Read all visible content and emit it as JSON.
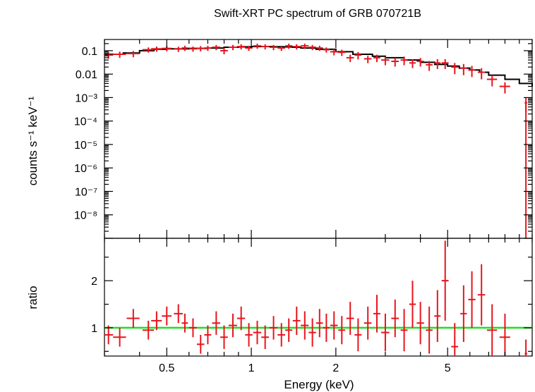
{
  "chart_data": [
    {
      "type": "scatter",
      "panel": "spectrum",
      "title": "Swift-XRT PC spectrum of GRB 070721B",
      "ylabel": "counts s⁻¹ keV⁻¹",
      "xlabel": "",
      "xscale": "log",
      "yscale": "log",
      "xlim": [
        0.3,
        10
      ],
      "ylim": [
        1e-09,
        0.3
      ],
      "y_tick_labels": [
        "0.1",
        "0.01",
        "10⁻³",
        "10⁻⁴",
        "10⁻⁵",
        "10⁻⁶",
        "10⁻⁷",
        "10⁻⁸"
      ],
      "y_tick_values": [
        0.1,
        0.01,
        0.001,
        0.0001,
        1e-05,
        1e-06,
        1e-07,
        1e-08
      ],
      "series": [
        {
          "color": "#e8141c",
          "x": [
            0.31,
            0.34,
            0.38,
            0.43,
            0.46,
            0.5,
            0.55,
            0.58,
            0.62,
            0.66,
            0.7,
            0.75,
            0.8,
            0.86,
            0.92,
            0.98,
            1.05,
            1.12,
            1.2,
            1.28,
            1.36,
            1.45,
            1.55,
            1.65,
            1.75,
            1.85,
            1.97,
            2.1,
            2.25,
            2.4,
            2.6,
            2.8,
            3.0,
            3.25,
            3.5,
            3.75,
            4.0,
            4.3,
            4.6,
            4.9,
            5.3,
            5.7,
            6.1,
            6.6,
            7.2,
            8.0,
            9.5
          ],
          "xerr": [
            0.012,
            0.018,
            0.02,
            0.02,
            0.02,
            0.02,
            0.02,
            0.015,
            0.02,
            0.02,
            0.02,
            0.025,
            0.025,
            0.03,
            0.03,
            0.03,
            0.035,
            0.035,
            0.04,
            0.04,
            0.04,
            0.045,
            0.05,
            0.05,
            0.05,
            0.05,
            0.06,
            0.06,
            0.07,
            0.07,
            0.08,
            0.08,
            0.1,
            0.1,
            0.1,
            0.1,
            0.12,
            0.12,
            0.12,
            0.14,
            0.15,
            0.15,
            0.18,
            0.2,
            0.3,
            0.35,
            0.1
          ],
          "y": [
            0.065,
            0.07,
            0.075,
            0.11,
            0.12,
            0.125,
            0.118,
            0.13,
            0.12,
            0.125,
            0.13,
            0.14,
            0.1,
            0.14,
            0.15,
            0.13,
            0.16,
            0.15,
            0.14,
            0.13,
            0.16,
            0.15,
            0.16,
            0.14,
            0.13,
            0.11,
            0.09,
            0.085,
            0.05,
            0.065,
            0.045,
            0.05,
            0.04,
            0.035,
            0.04,
            0.03,
            0.035,
            0.025,
            0.03,
            0.03,
            0.02,
            0.018,
            0.015,
            0.012,
            0.006,
            0.003,
            0.0006
          ],
          "yerr_frac": [
            0.3,
            0.3,
            0.3,
            0.25,
            0.25,
            0.25,
            0.25,
            0.25,
            0.25,
            0.25,
            0.25,
            0.25,
            0.3,
            0.25,
            0.25,
            0.25,
            0.25,
            0.25,
            0.25,
            0.25,
            0.25,
            0.25,
            0.25,
            0.25,
            0.25,
            0.25,
            0.3,
            0.3,
            0.35,
            0.35,
            0.35,
            0.35,
            0.4,
            0.4,
            0.4,
            0.4,
            0.4,
            0.45,
            0.45,
            0.45,
            0.5,
            0.5,
            0.5,
            0.5,
            0.5,
            0.5,
            0.6
          ]
        }
      ],
      "model": {
        "color": "#000000",
        "x": [
          0.3,
          0.35,
          0.4,
          0.45,
          0.5,
          0.6,
          0.7,
          0.8,
          0.9,
          1.0,
          1.1,
          1.2,
          1.3,
          1.4,
          1.5,
          1.7,
          2.0,
          2.3,
          2.7,
          3.0,
          3.5,
          4.0,
          4.5,
          5.0,
          5.5,
          6.0,
          6.5,
          7.0,
          8.0,
          9.0,
          10.0
        ],
        "y": [
          0.07,
          0.08,
          0.1,
          0.115,
          0.12,
          0.125,
          0.13,
          0.14,
          0.145,
          0.15,
          0.15,
          0.148,
          0.145,
          0.14,
          0.13,
          0.115,
          0.09,
          0.07,
          0.058,
          0.05,
          0.04,
          0.032,
          0.026,
          0.022,
          0.018,
          0.015,
          0.012,
          0.009,
          0.006,
          0.004,
          0.003
        ]
      }
    },
    {
      "type": "scatter",
      "panel": "ratio",
      "title": "",
      "ylabel": "ratio",
      "xlabel": "Energy (keV)",
      "xscale": "log",
      "xlim": [
        0.3,
        10
      ],
      "ylim": [
        0.4,
        2.9
      ],
      "x_tick_labels": [
        "0.5",
        "1",
        "2",
        "5"
      ],
      "x_tick_values": [
        0.5,
        1,
        2,
        5
      ],
      "y_tick_labels": [
        "1",
        "2"
      ],
      "y_tick_values": [
        1,
        2
      ],
      "reference_line": {
        "y": 1,
        "color": "#22dd22"
      },
      "series": [
        {
          "color": "#e8141c",
          "x": [
            0.31,
            0.34,
            0.38,
            0.43,
            0.46,
            0.5,
            0.55,
            0.58,
            0.62,
            0.66,
            0.7,
            0.75,
            0.8,
            0.86,
            0.92,
            0.98,
            1.05,
            1.12,
            1.2,
            1.28,
            1.36,
            1.45,
            1.55,
            1.65,
            1.75,
            1.85,
            1.97,
            2.1,
            2.25,
            2.4,
            2.6,
            2.8,
            3.0,
            3.25,
            3.5,
            3.75,
            4.0,
            4.3,
            4.6,
            4.9,
            5.3,
            5.7,
            6.1,
            6.6,
            7.2,
            8.0,
            9.5
          ],
          "xerr": [
            0.012,
            0.018,
            0.02,
            0.02,
            0.02,
            0.02,
            0.02,
            0.015,
            0.02,
            0.02,
            0.02,
            0.025,
            0.025,
            0.03,
            0.03,
            0.03,
            0.035,
            0.035,
            0.04,
            0.04,
            0.04,
            0.045,
            0.05,
            0.05,
            0.05,
            0.05,
            0.06,
            0.06,
            0.07,
            0.07,
            0.08,
            0.08,
            0.1,
            0.1,
            0.1,
            0.1,
            0.12,
            0.12,
            0.12,
            0.14,
            0.15,
            0.15,
            0.18,
            0.2,
            0.3,
            0.35,
            0.1
          ],
          "y": [
            0.85,
            0.8,
            1.2,
            0.95,
            1.15,
            1.25,
            1.3,
            1.1,
            1.0,
            0.65,
            0.85,
            1.1,
            0.8,
            1.05,
            1.2,
            0.85,
            0.9,
            0.8,
            1.0,
            0.85,
            0.95,
            1.15,
            1.05,
            0.9,
            1.1,
            1.0,
            1.05,
            0.95,
            1.2,
            0.85,
            1.1,
            1.3,
            0.9,
            1.2,
            0.95,
            1.5,
            1.1,
            0.95,
            1.25,
            2.0,
            0.6,
            1.3,
            1.6,
            1.7,
            0.95,
            0.8,
            0.45
          ],
          "yerr": [
            0.2,
            0.2,
            0.2,
            0.2,
            0.2,
            0.2,
            0.2,
            0.2,
            0.2,
            0.2,
            0.2,
            0.25,
            0.25,
            0.25,
            0.25,
            0.25,
            0.25,
            0.25,
            0.25,
            0.25,
            0.25,
            0.3,
            0.3,
            0.3,
            0.3,
            0.3,
            0.3,
            0.3,
            0.35,
            0.35,
            0.35,
            0.4,
            0.4,
            0.4,
            0.45,
            0.5,
            0.45,
            0.5,
            0.55,
            0.85,
            0.5,
            0.6,
            0.6,
            0.65,
            0.55,
            0.5,
            0.3
          ]
        }
      ]
    }
  ]
}
